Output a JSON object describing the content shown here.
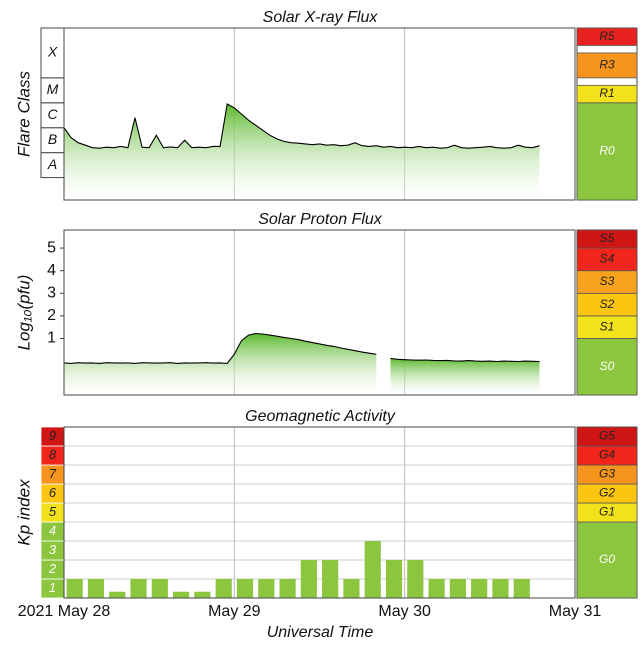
{
  "chart_data": [
    {
      "type": "line",
      "title": "Solar X-ray Flux",
      "ylabel": "Flare Class",
      "xlim": [
        0,
        72
      ],
      "ylim": [
        -8.9,
        -2
      ],
      "class_labels": [
        "A",
        "B",
        "C",
        "M",
        "X"
      ],
      "class_bounds": [
        -8,
        -7,
        -6,
        -5,
        -4,
        -2
      ],
      "scale_bands": [
        {
          "label": "R0",
          "from": -8.9,
          "to": -5,
          "color": "#8cc63f"
        },
        {
          "label": "R1",
          "from": -5,
          "to": -4.3,
          "color": "#f2e21b"
        },
        {
          "label": "R3",
          "from": -4,
          "to": -3,
          "color": "#f7941d"
        },
        {
          "label": "R5",
          "from": -2.7,
          "to": -2,
          "color": "#e8231f"
        }
      ],
      "series": [
        {
          "color": "#000000",
          "fill": "#6cc33a",
          "x": [
            0,
            1,
            2,
            3,
            4,
            5,
            6,
            7,
            8,
            9,
            10,
            11,
            12,
            13,
            14,
            15,
            16,
            17,
            18,
            19,
            20,
            21,
            22,
            23,
            24,
            25,
            26,
            27,
            28,
            29,
            30,
            31,
            32,
            33,
            34,
            35,
            36,
            37,
            38,
            39,
            40,
            41,
            42,
            43,
            44,
            45,
            46,
            47,
            48,
            49,
            50,
            51,
            52,
            53,
            54,
            55,
            56,
            57,
            58,
            59,
            60,
            61,
            62,
            63,
            64,
            65,
            66,
            67
          ],
          "values": [
            -6.0,
            -6.4,
            -6.6,
            -6.7,
            -6.8,
            -6.82,
            -6.78,
            -6.8,
            -6.75,
            -6.8,
            -5.6,
            -6.78,
            -6.8,
            -6.3,
            -6.8,
            -6.77,
            -6.8,
            -6.5,
            -6.8,
            -6.78,
            -6.8,
            -6.75,
            -6.75,
            -5.05,
            -5.2,
            -5.45,
            -5.7,
            -5.9,
            -6.1,
            -6.3,
            -6.45,
            -6.55,
            -6.6,
            -6.62,
            -6.65,
            -6.68,
            -6.65,
            -6.7,
            -6.68,
            -6.72,
            -6.7,
            -6.6,
            -6.72,
            -6.75,
            -6.72,
            -6.78,
            -6.75,
            -6.8,
            -6.78,
            -6.8,
            -6.75,
            -6.8,
            -6.78,
            -6.82,
            -6.8,
            -6.7,
            -6.8,
            -6.82,
            -6.8,
            -6.78,
            -6.75,
            -6.8,
            -6.82,
            -6.8,
            -6.7,
            -6.78,
            -6.8,
            -6.72
          ]
        }
      ]
    },
    {
      "type": "line",
      "title": "Solar Proton Flux",
      "ylabel": "Log₁₀(pfu)",
      "xlim": [
        0,
        72
      ],
      "ylim": [
        -1.5,
        5.8
      ],
      "yticks": [
        1,
        2,
        3,
        4,
        5
      ],
      "scale_bands": [
        {
          "label": "S0",
          "from": -1.5,
          "to": 1,
          "color": "#8cc63f"
        },
        {
          "label": "S1",
          "from": 1,
          "to": 2,
          "color": "#f2e21b"
        },
        {
          "label": "S2",
          "from": 2,
          "to": 3,
          "color": "#fbc512"
        },
        {
          "label": "S3",
          "from": 3,
          "to": 4,
          "color": "#f7a21b"
        },
        {
          "label": "S4",
          "from": 4,
          "to": 5,
          "color": "#f2251b"
        },
        {
          "label": "S5",
          "from": 5,
          "to": 5.8,
          "color": "#d01515"
        }
      ],
      "series": [
        {
          "color": "#000000",
          "fill": "#6cc33a",
          "x": [
            0,
            1,
            2,
            3,
            4,
            5,
            6,
            7,
            8,
            9,
            10,
            11,
            12,
            13,
            14,
            15,
            16,
            17,
            18,
            19,
            20,
            21,
            22,
            23,
            24,
            25,
            26,
            27,
            28,
            29,
            30,
            31,
            32,
            33,
            34,
            35,
            36,
            37,
            38,
            39,
            40,
            41,
            42,
            43,
            44,
            45,
            46,
            47,
            48,
            49,
            50,
            51,
            52,
            53,
            54,
            55,
            56,
            57,
            58,
            59,
            60,
            61,
            62,
            63,
            64,
            65,
            66,
            67
          ],
          "values": [
            -0.08,
            -0.1,
            -0.07,
            -0.09,
            -0.08,
            -0.1,
            -0.07,
            -0.08,
            -0.09,
            -0.08,
            -0.1,
            -0.07,
            -0.08,
            -0.09,
            -0.08,
            -0.07,
            -0.1,
            -0.08,
            -0.09,
            -0.08,
            -0.07,
            -0.09,
            -0.08,
            -0.1,
            0.3,
            0.9,
            1.15,
            1.22,
            1.2,
            1.15,
            1.1,
            1.05,
            1.0,
            0.95,
            0.88,
            0.82,
            0.76,
            0.7,
            0.65,
            0.58,
            0.52,
            0.46,
            0.4,
            0.35,
            0.3,
            null,
            0.12,
            0.08,
            0.06,
            0.05,
            0.04,
            0.05,
            0.03,
            0.02,
            0.03,
            0.01,
            0.0,
            0.02,
            0.0,
            -0.01,
            0.0,
            -0.02,
            0.0,
            -0.01,
            -0.02,
            0.0,
            -0.01,
            -0.02
          ]
        }
      ]
    },
    {
      "type": "bar",
      "title": "Geomagnetic Activity",
      "ylabel": "Kp index",
      "xlabel": "Universal Time",
      "xlim": [
        0,
        72
      ],
      "xticks": [
        {
          "value": 0,
          "label": "2021 May 28"
        },
        {
          "value": 24,
          "label": "May 29"
        },
        {
          "value": 48,
          "label": "May 30"
        },
        {
          "value": 72,
          "label": "May 31"
        }
      ],
      "ylim": [
        0,
        9
      ],
      "kp_levels": [
        1,
        2,
        3,
        4,
        5,
        6,
        7,
        8,
        9
      ],
      "kp_colors": [
        "#8cc63f",
        "#8cc63f",
        "#8cc63f",
        "#8cc63f",
        "#f2e21b",
        "#fbc512",
        "#f7941d",
        "#f2251b",
        "#d01515"
      ],
      "scale_bands": [
        {
          "label": "G0",
          "from": 0,
          "to": 4,
          "color": "#8cc63f"
        },
        {
          "label": "G1",
          "from": 4,
          "to": 5,
          "color": "#f2e21b"
        },
        {
          "label": "G2",
          "from": 5,
          "to": 6,
          "color": "#fbc512"
        },
        {
          "label": "G3",
          "from": 6,
          "to": 7,
          "color": "#f7941d"
        },
        {
          "label": "G4",
          "from": 7,
          "to": 8,
          "color": "#f2251b"
        },
        {
          "label": "G5",
          "from": 8,
          "to": 9,
          "color": "#d01515"
        }
      ],
      "color": "#8cc63f",
      "x": [
        0,
        3,
        6,
        9,
        12,
        15,
        18,
        21,
        24,
        27,
        30,
        33,
        36,
        39,
        42,
        45,
        48,
        51,
        54,
        57,
        60,
        63
      ],
      "values": [
        1,
        1,
        0.33,
        1,
        1,
        0.33,
        0.33,
        1,
        1,
        1,
        1,
        2,
        2,
        1,
        3,
        2,
        2,
        1,
        1,
        1,
        1,
        1
      ]
    }
  ]
}
